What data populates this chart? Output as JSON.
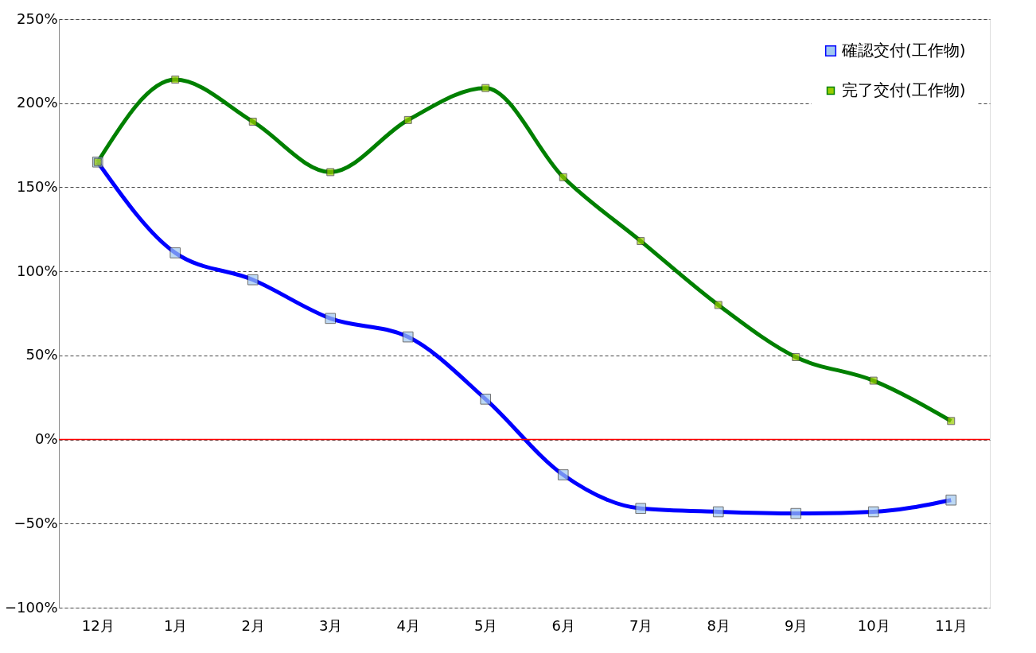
{
  "chart_data": {
    "type": "line",
    "categories": [
      "12月",
      "1月",
      "2月",
      "3月",
      "4月",
      "5月",
      "6月",
      "7月",
      "8月",
      "9月",
      "10月",
      "11月"
    ],
    "series": [
      {
        "name": "確認交付(工作物)",
        "color": "#0000ff",
        "values": [
          165,
          111,
          95,
          72,
          61,
          24,
          -21,
          -41,
          -43,
          -44,
          -43,
          -36
        ]
      },
      {
        "name": "完了交付(工作物)",
        "color": "#008000",
        "values": [
          165,
          214,
          189,
          159,
          190,
          209,
          156,
          118,
          80,
          49,
          35,
          11
        ]
      }
    ],
    "ylim": [
      -100,
      250
    ],
    "yticks": [
      {
        "value": -100,
        "label": "−100%"
      },
      {
        "value": -50,
        "label": "−50%"
      },
      {
        "value": 0,
        "label": "0%"
      },
      {
        "value": 50,
        "label": "50%"
      },
      {
        "value": 100,
        "label": "100%"
      },
      {
        "value": 150,
        "label": "150%"
      },
      {
        "value": 200,
        "label": "200%"
      },
      {
        "value": 250,
        "label": "250%"
      }
    ],
    "ref_lines": [
      {
        "axis": "y",
        "value": 0,
        "label": null,
        "color": "#ff0000"
      }
    ],
    "grid": "y",
    "legend": "top right",
    "marker": "square",
    "line_style": "solid"
  }
}
